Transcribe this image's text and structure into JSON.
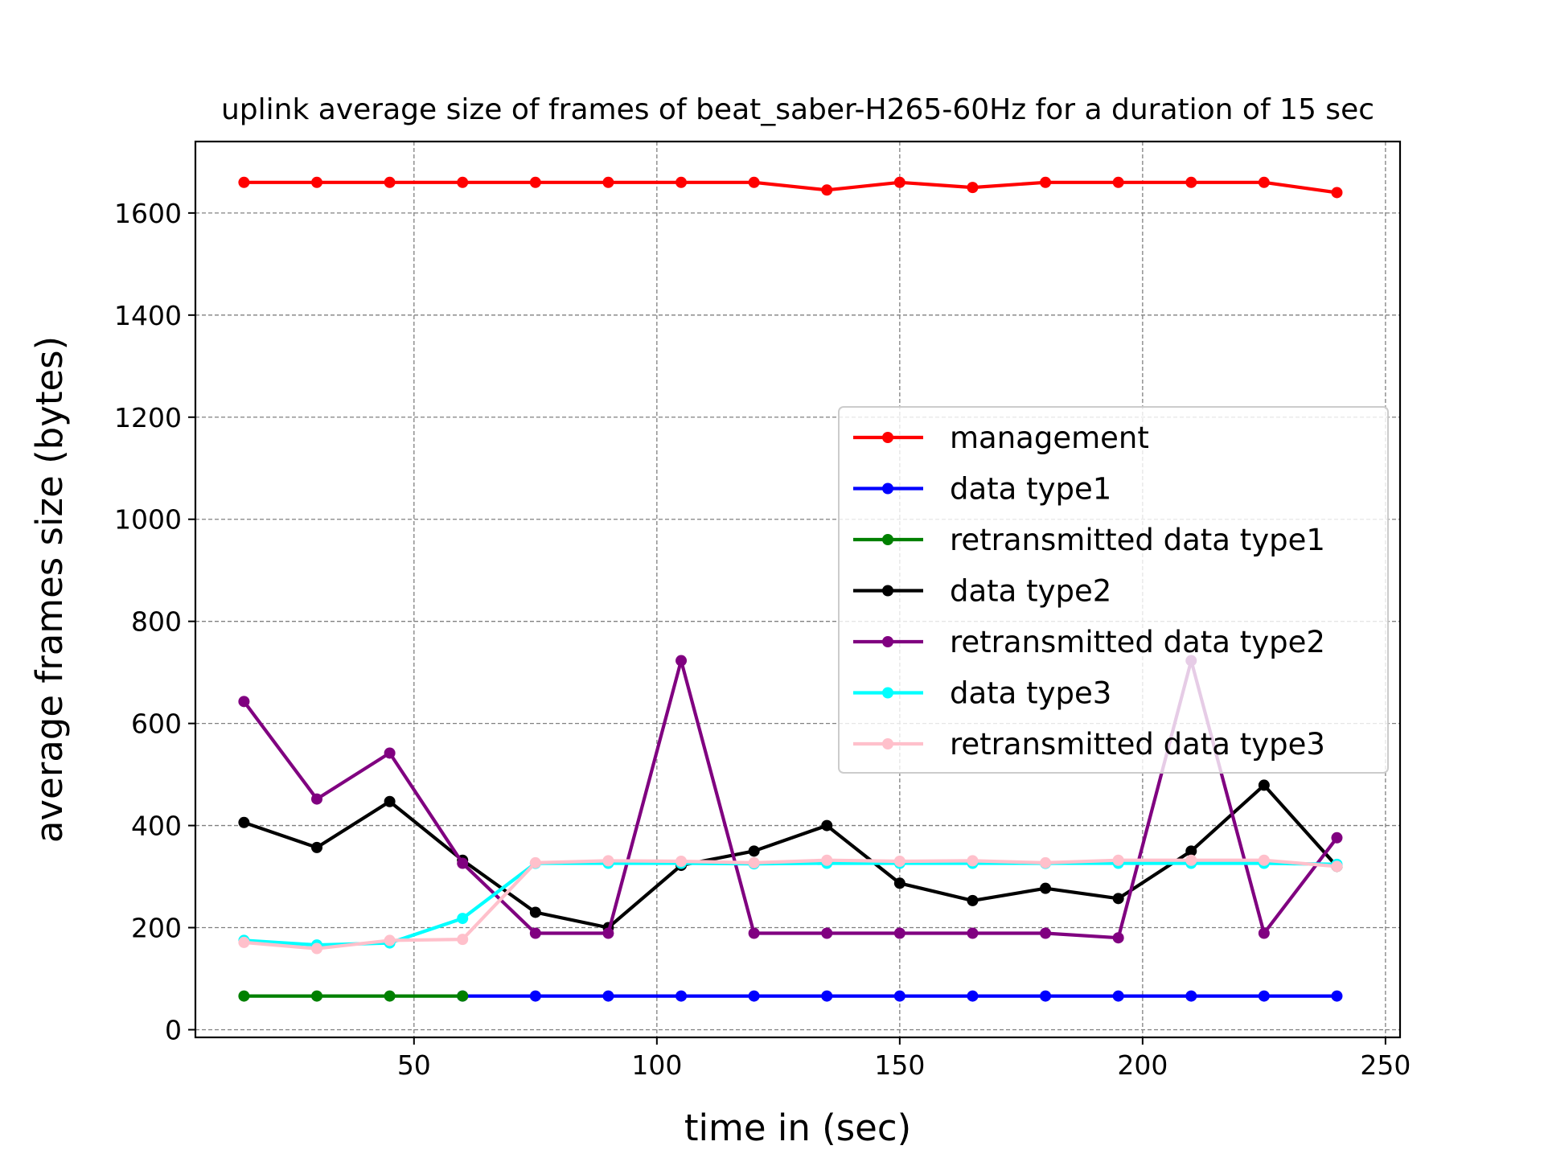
{
  "chart_data": {
    "type": "line",
    "title": "uplink average size of frames of beat_saber-H265-60Hz for a duration of 15 sec",
    "xlabel": "time in (sec)",
    "ylabel": "average frames size (bytes)",
    "xlim": [
      5,
      253
    ],
    "ylim": [
      -15,
      1740
    ],
    "xticks": [
      50,
      100,
      150,
      200,
      250
    ],
    "yticks": [
      0,
      200,
      400,
      600,
      800,
      1000,
      1200,
      1400,
      1600
    ],
    "grid": true,
    "legend_position": "center-right",
    "series": [
      {
        "name": "management",
        "color": "#ff0000",
        "x": [
          15,
          30,
          45,
          60,
          75,
          90,
          105,
          120,
          135,
          150,
          165,
          180,
          195,
          210,
          225,
          240
        ],
        "y": [
          1660,
          1660,
          1660,
          1660,
          1660,
          1660,
          1660,
          1660,
          1645,
          1660,
          1650,
          1660,
          1660,
          1660,
          1660,
          1640
        ]
      },
      {
        "name": "data type1",
        "color": "#0000ff",
        "x": [
          60,
          75,
          90,
          105,
          120,
          135,
          150,
          165,
          180,
          195,
          210,
          225,
          240
        ],
        "y": [
          66,
          66,
          66,
          66,
          66,
          66,
          66,
          66,
          66,
          66,
          66,
          66,
          66
        ]
      },
      {
        "name": "retransmitted data type1",
        "color": "#008000",
        "x": [
          15,
          30,
          45,
          60
        ],
        "y": [
          66,
          66,
          66,
          66
        ]
      },
      {
        "name": "data type2",
        "color": "#000000",
        "x": [
          15,
          30,
          45,
          60,
          75,
          90,
          105,
          120,
          135,
          150,
          165,
          180,
          195,
          210,
          225,
          240
        ],
        "y": [
          406,
          357,
          447,
          332,
          230,
          200,
          322,
          350,
          400,
          287,
          253,
          277,
          257,
          350,
          479,
          320
        ]
      },
      {
        "name": "retransmitted data type2",
        "color": "#800080",
        "x": [
          15,
          30,
          45,
          60,
          75,
          90,
          105,
          120,
          135,
          150,
          165,
          180,
          195,
          210,
          225,
          240
        ],
        "y": [
          643,
          452,
          542,
          326,
          189,
          189,
          723,
          189,
          189,
          189,
          189,
          189,
          180,
          723,
          189,
          376
        ]
      },
      {
        "name": "data type3",
        "color": "#00ffff",
        "x": [
          15,
          30,
          45,
          60,
          75,
          90,
          105,
          120,
          135,
          150,
          165,
          180,
          195,
          210,
          225,
          240
        ],
        "y": [
          175,
          166,
          170,
          218,
          326,
          326,
          326,
          325,
          326,
          326,
          326,
          326,
          326,
          326,
          326,
          324
        ]
      },
      {
        "name": "retransmitted data type3",
        "color": "#ffc0cb",
        "x": [
          15,
          30,
          45,
          60,
          75,
          90,
          105,
          120,
          135,
          150,
          165,
          180,
          195,
          210,
          225,
          240
        ],
        "y": [
          171,
          159,
          175,
          177,
          327,
          331,
          330,
          327,
          332,
          330,
          331,
          327,
          332,
          332,
          332,
          320
        ]
      }
    ]
  }
}
